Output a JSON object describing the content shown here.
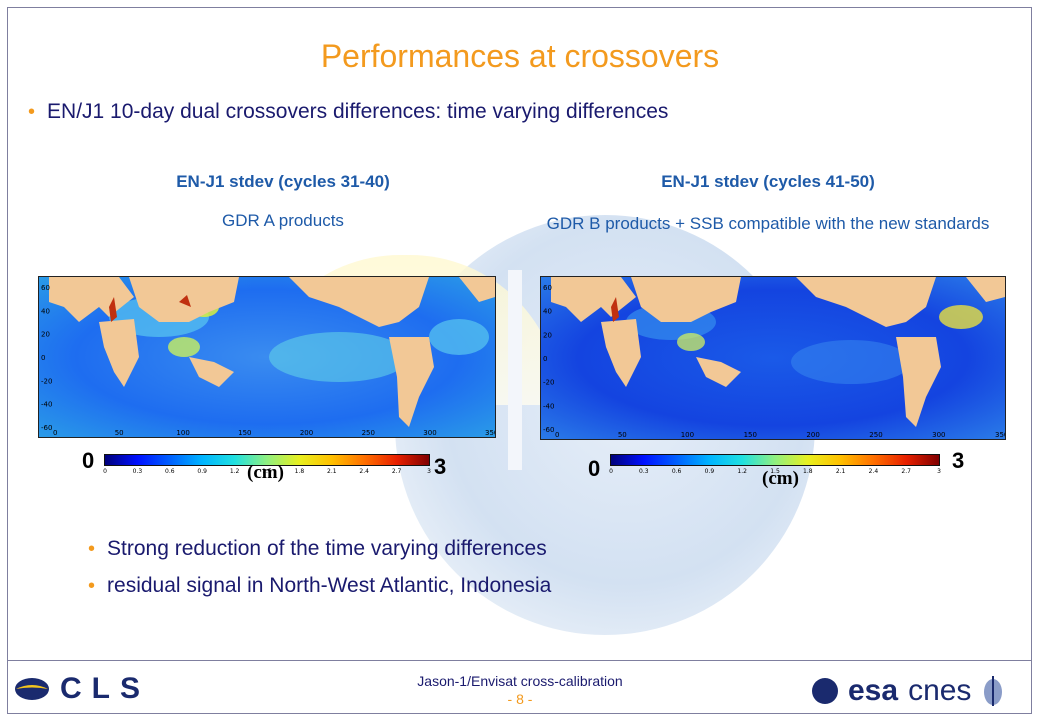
{
  "title": "Performances at crossovers",
  "bullet_main": "EN/J1 10-day dual crossovers differences: time varying differences",
  "panels": [
    {
      "heading": "EN-J1 stdev (cycles 31-40)",
      "subtitle": "GDR A products",
      "colorbar": {
        "min_label": "0",
        "max_label": "3",
        "unit": "(cm)"
      }
    },
    {
      "heading": "EN-J1 stdev (cycles 41-50)",
      "subtitle": "GDR B products + SSB compatible with the new standards",
      "colorbar": {
        "min_label": "0",
        "max_label": "3",
        "unit": "(cm)"
      }
    }
  ],
  "map_axes": {
    "lat_ticks": [
      "60",
      "40",
      "20",
      "0",
      "-20",
      "-40",
      "-60"
    ],
    "lon_ticks": [
      "0",
      "50",
      "100",
      "150",
      "200",
      "250",
      "300",
      "350"
    ],
    "colorbar_ticks": [
      "0",
      "0.3",
      "0.6",
      "0.9",
      "1.2",
      "1.5",
      "1.8",
      "2.1",
      "2.4",
      "2.7",
      "3"
    ]
  },
  "bullets_lower": [
    "Strong reduction of the time varying differences",
    "residual signal in North-West Atlantic, Indonesia"
  ],
  "footer": {
    "text": "Jason-1/Envisat cross-calibration",
    "page": "- 8 -"
  },
  "logos": {
    "left": "CLS",
    "right_esa": "esa",
    "right_cnes": "cnes"
  },
  "colors": {
    "accent": "#f39a1e",
    "text": "#1a1a6e",
    "heading": "#1e5aa8"
  }
}
